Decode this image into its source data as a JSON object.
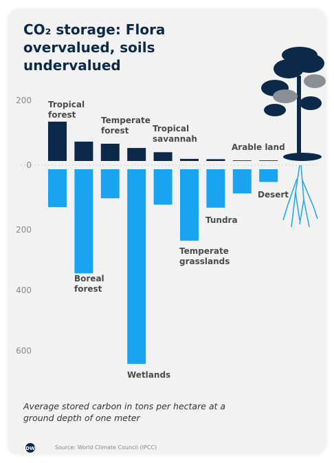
{
  "chart_data": {
    "type": "bar",
    "title": "CO₂ storage: Flora overvalued, soils undervalued",
    "categories": [
      "Tropical forest",
      "Boreal forest",
      "Temperate forest",
      "Wetlands",
      "Tropical savannah",
      "Temperate grasslands",
      "Tundra",
      "Arable land",
      "Desert"
    ],
    "series": [
      {
        "name": "Flora",
        "color": "#0b2a4a",
        "values": [
          130,
          64,
          57,
          43,
          29,
          7,
          6,
          2,
          2
        ]
      },
      {
        "name": "Soils",
        "color": "#1aa3f0",
        "axis": "y2",
        "values": [
          125,
          344,
          96,
          643,
          117,
          236,
          127,
          80,
          42
        ]
      }
    ],
    "ylim": [
      0,
      230
    ],
    "yticks": [
      0,
      200
    ],
    "y2lim": [
      0,
      680
    ],
    "y2ticks": [
      200,
      400,
      600
    ],
    "note": "Average stored carbon in tons per hectare at a ground depth of one meter",
    "source": "Source: World Climate Council (IPCC)"
  }
}
